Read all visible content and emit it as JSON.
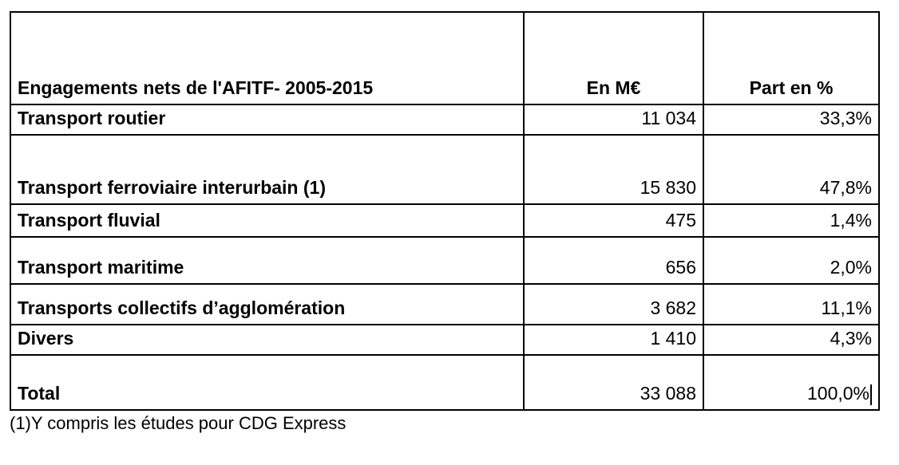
{
  "table": {
    "header": {
      "label": "Engagements nets de l'AFITF- 2005-2015",
      "col_value": "En M€",
      "col_share": "Part en %"
    },
    "rows": [
      {
        "label": "Transport routier",
        "value": "11 034",
        "share": "33,3%"
      },
      {
        "label": "Transport ferroviaire interurbain (1)",
        "value": "15 830",
        "share": "47,8%"
      },
      {
        "label": "Transport fluvial",
        "value": "475",
        "share": "1,4%"
      },
      {
        "label": "Transport maritime",
        "value": "656",
        "share": "2,0%"
      },
      {
        "label": "Transports collectifs d’agglomération",
        "value": "3 682",
        "share": "11,1%"
      },
      {
        "label": "Divers",
        "value": "1 410",
        "share": "4,3%"
      },
      {
        "label": "Total",
        "value": "33 088",
        "share": "100,0%"
      }
    ],
    "footnote": "(1)Y compris les études pour CDG Express"
  },
  "chart_data": {
    "type": "table",
    "title": "Engagements nets de l'AFITF- 2005-2015",
    "columns": [
      "Engagements nets de l'AFITF- 2005-2015",
      "En M€",
      "Part en %"
    ],
    "rows": [
      {
        "label": "Transport routier",
        "m_eur": 11034,
        "part_pct": 33.3
      },
      {
        "label": "Transport ferroviaire interurbain (1)",
        "m_eur": 15830,
        "part_pct": 47.8
      },
      {
        "label": "Transport fluvial",
        "m_eur": 475,
        "part_pct": 1.4
      },
      {
        "label": "Transport maritime",
        "m_eur": 656,
        "part_pct": 2.0
      },
      {
        "label": "Transports collectifs d’agglomération",
        "m_eur": 3682,
        "part_pct": 11.1
      },
      {
        "label": "Divers",
        "m_eur": 1410,
        "part_pct": 4.3
      },
      {
        "label": "Total",
        "m_eur": 33088,
        "part_pct": 100.0
      }
    ]
  }
}
